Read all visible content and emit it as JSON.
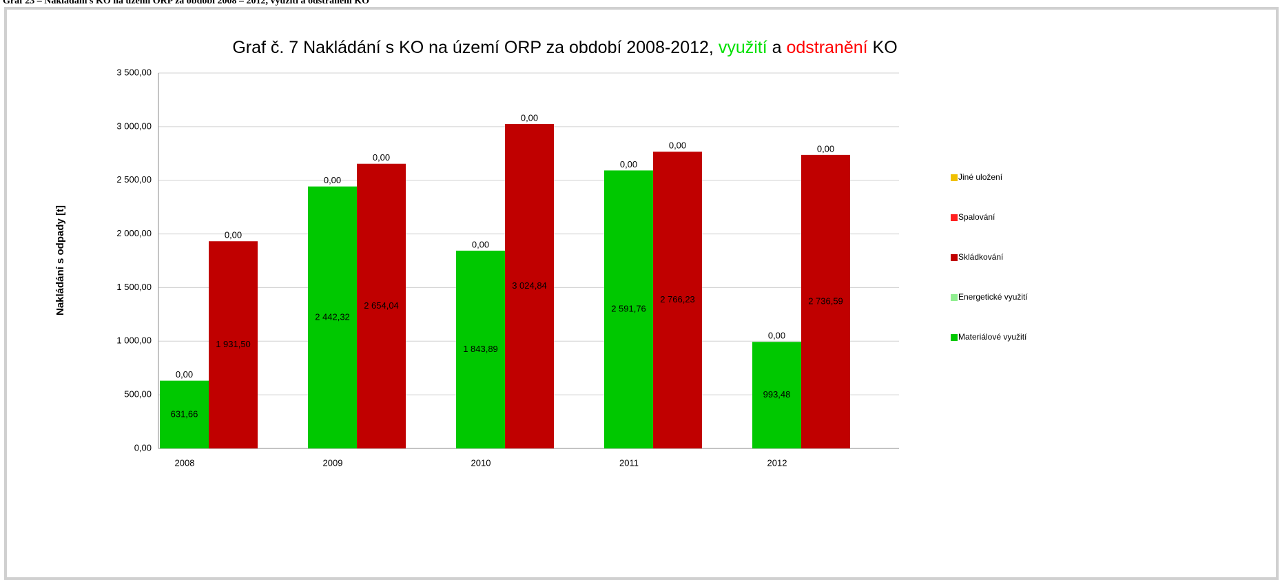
{
  "caption": "Graf 23 – Nakládání s KO na území ORP za období 2008 – 2012, využití a odstranění KO",
  "chart_data": {
    "type": "stacked-bar",
    "title": [
      "Graf č. 7 Nakládání s KO na území ORP za období 2008-2012, ",
      "využití",
      " a ",
      "odstranění",
      " KO"
    ],
    "title_colors": [
      "#000000",
      "#00e000",
      "#000000",
      "#ff0000",
      "#000000"
    ],
    "y_label": "Nakládání s odpady [t]",
    "categories": [
      "2008",
      "2009",
      "2010",
      "2011",
      "2012"
    ],
    "series": [
      {
        "name": "Materiálové využití",
        "color": "#00c800",
        "stack": 0,
        "values": [
          631.66,
          2442.32,
          1843.89,
          2591.76,
          993.48
        ],
        "value_labels": [
          "631,66",
          "2 442,32",
          "1 843,89",
          "2 591,76",
          "993,48"
        ]
      },
      {
        "name": "Energetické využití",
        "color": "#90ee90",
        "stack": 0,
        "values": [
          0,
          0,
          0,
          0,
          0
        ],
        "value_labels": [
          "0,00",
          "0,00",
          "0,00",
          "0,00",
          "0,00"
        ]
      },
      {
        "name": "Skládkování",
        "color": "#c00000",
        "stack": 1,
        "values": [
          1931.5,
          2654.04,
          3024.84,
          2766.23,
          2736.59
        ],
        "value_labels": [
          "1 931,50",
          "2 654,04",
          "3 024,84",
          "2 766,23",
          "2 736,59"
        ]
      },
      {
        "name": "Spalování",
        "color": "#ff2020",
        "stack": 1,
        "values": [
          0,
          0,
          0,
          0,
          0
        ],
        "value_labels": [
          "0,00",
          "0,00",
          "0,00",
          "0,00",
          "0,00"
        ]
      },
      {
        "name": "Jiné uložení",
        "color": "#f0c000",
        "stack": 1,
        "values": [
          null,
          null,
          null,
          null,
          null
        ]
      }
    ],
    "ylim": [
      0,
      3500
    ],
    "yticks": [
      {
        "value": 0,
        "label": "0,00"
      },
      {
        "value": 500,
        "label": "500,00"
      },
      {
        "value": 1000,
        "label": "1 000,00"
      },
      {
        "value": 1500,
        "label": "1 500,00"
      },
      {
        "value": 2000,
        "label": "2 000,00"
      },
      {
        "value": 2500,
        "label": "2 500,00"
      },
      {
        "value": 3000,
        "label": "3 000,00"
      },
      {
        "value": 3500,
        "label": "3 500,00"
      }
    ],
    "grid": true,
    "legend": "right"
  }
}
